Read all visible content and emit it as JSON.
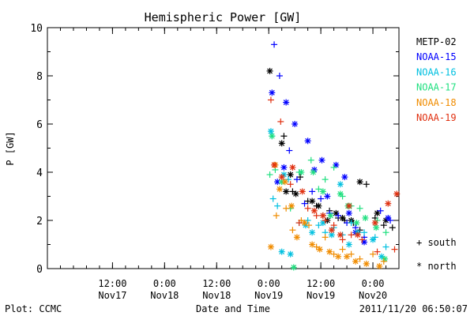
{
  "chart_data": {
    "type": "scatter",
    "title": "Hemispheric Power [GW]",
    "ylabel": "P [GW]",
    "xlabel": "Date and Time",
    "ylim": [
      0,
      10
    ],
    "yticks": [
      0,
      2,
      4,
      6,
      8,
      10
    ],
    "xlim": [
      "2011-11-16T21:00",
      "2011-11-20T06:00"
    ],
    "xticks": [
      {
        "t": "2011-11-17T12:00",
        "line1": "12:00",
        "line2": "Nov17"
      },
      {
        "t": "2011-11-18T00:00",
        "line1": "0:00",
        "line2": "Nov18"
      },
      {
        "t": "2011-11-18T12:00",
        "line1": "12:00",
        "line2": "Nov18"
      },
      {
        "t": "2011-11-19T00:00",
        "line1": "0:00",
        "line2": "Nov19"
      },
      {
        "t": "2011-11-19T12:00",
        "line1": "12:00",
        "line2": "Nov19"
      },
      {
        "t": "2011-11-20T00:00",
        "line1": "0:00",
        "line2": "Nov20"
      }
    ],
    "markers": {
      "south": "+",
      "north": "*"
    },
    "series": [
      {
        "name": "METP-02",
        "color": "#000000",
        "south": [
          [
            "2011-11-19T03:30",
            5.5
          ],
          [
            "2011-11-19T05:30",
            3.2
          ],
          [
            "2011-11-19T07:15",
            3.8
          ],
          [
            "2011-11-19T09:00",
            2.8
          ],
          [
            "2011-11-19T11:00",
            2.6
          ],
          [
            "2011-11-19T12:30",
            2.2
          ],
          [
            "2011-11-19T14:00",
            2.4
          ],
          [
            "2011-11-19T16:00",
            2.1
          ],
          [
            "2011-11-19T17:30",
            2.0
          ],
          [
            "2011-11-19T19:30",
            1.9
          ],
          [
            "2011-11-19T21:00",
            1.6
          ],
          [
            "2011-11-19T22:30",
            3.5
          ],
          [
            "2011-11-20T00:30",
            2.1
          ],
          [
            "2011-11-20T02:30",
            1.8
          ],
          [
            "2011-11-20T04:30",
            1.7
          ]
        ],
        "north": [
          [
            "2011-11-19T00:15",
            8.2
          ],
          [
            "2011-11-19T03:00",
            5.2
          ],
          [
            "2011-11-19T04:00",
            3.2
          ],
          [
            "2011-11-19T05:00",
            3.9
          ],
          [
            "2011-11-19T06:15",
            3.1
          ],
          [
            "2011-11-19T10:00",
            2.8
          ],
          [
            "2011-11-19T11:30",
            2.6
          ],
          [
            "2011-11-19T13:30",
            2.0
          ],
          [
            "2011-11-19T15:30",
            2.3
          ],
          [
            "2011-11-19T17:00",
            2.1
          ],
          [
            "2011-11-19T19:00",
            2.0
          ],
          [
            "2011-11-19T21:00",
            3.6
          ],
          [
            "2011-11-20T01:00",
            2.3
          ],
          [
            "2011-11-20T03:00",
            2.0
          ]
        ]
      },
      {
        "name": "NOAA-15",
        "color": "#0000ff",
        "south": [
          [
            "2011-11-19T01:15",
            9.3
          ],
          [
            "2011-11-19T02:30",
            8.0
          ],
          [
            "2011-11-19T04:45",
            4.9
          ],
          [
            "2011-11-19T06:30",
            3.7
          ],
          [
            "2011-11-19T08:15",
            2.7
          ],
          [
            "2011-11-19T10:00",
            3.2
          ],
          [
            "2011-11-19T12:00",
            2.9
          ],
          [
            "2011-11-19T14:00",
            2.3
          ],
          [
            "2011-11-19T16:00",
            2.2
          ],
          [
            "2011-11-19T18:00",
            1.9
          ],
          [
            "2011-11-19T20:00",
            1.7
          ],
          [
            "2011-11-19T22:00",
            1.3
          ],
          [
            "2011-11-20T01:45",
            2.4
          ],
          [
            "2011-11-20T04:00",
            2.0
          ]
        ],
        "north": [
          [
            "2011-11-19T00:45",
            7.3
          ],
          [
            "2011-11-19T02:00",
            3.6
          ],
          [
            "2011-11-19T03:30",
            4.2
          ],
          [
            "2011-11-19T04:00",
            6.9
          ],
          [
            "2011-11-19T06:00",
            6.0
          ],
          [
            "2011-11-19T09:00",
            5.3
          ],
          [
            "2011-11-19T10:30",
            4.1
          ],
          [
            "2011-11-19T12:15",
            4.5
          ],
          [
            "2011-11-19T13:30",
            3.0
          ],
          [
            "2011-11-19T15:30",
            4.3
          ],
          [
            "2011-11-19T17:30",
            3.8
          ],
          [
            "2011-11-19T18:30",
            2.3
          ],
          [
            "2011-11-19T20:00",
            1.5
          ],
          [
            "2011-11-19T22:00",
            1.1
          ],
          [
            "2011-11-20T03:30",
            2.1
          ]
        ]
      },
      {
        "name": "NOAA-16",
        "color": "#00c0e0",
        "south": [
          [
            "2011-11-19T00:45",
            5.5
          ],
          [
            "2011-11-19T01:00",
            2.9
          ],
          [
            "2011-11-19T02:00",
            2.6
          ],
          [
            "2011-11-19T04:30",
            3.7
          ],
          [
            "2011-11-19T07:00",
            1.9
          ],
          [
            "2011-11-19T09:00",
            2.0
          ],
          [
            "2011-11-19T11:30",
            1.8
          ],
          [
            "2011-11-19T13:00",
            1.5
          ],
          [
            "2011-11-19T15:00",
            1.7
          ],
          [
            "2011-11-19T17:00",
            1.4
          ],
          [
            "2011-11-19T19:00",
            1.9
          ],
          [
            "2011-11-19T22:00",
            1.5
          ],
          [
            "2011-11-20T00:30",
            1.3
          ],
          [
            "2011-11-20T03:00",
            0.9
          ]
        ],
        "north": [
          [
            "2011-11-19T00:30",
            5.7
          ],
          [
            "2011-11-19T03:30",
            3.9
          ],
          [
            "2011-11-19T03:00",
            0.7
          ],
          [
            "2011-11-19T05:00",
            0.6
          ],
          [
            "2011-11-19T08:30",
            1.8
          ],
          [
            "2011-11-19T10:00",
            1.5
          ],
          [
            "2011-11-19T12:30",
            1.9
          ],
          [
            "2011-11-19T14:30",
            1.4
          ],
          [
            "2011-11-19T16:30",
            3.5
          ],
          [
            "2011-11-19T18:30",
            1.0
          ],
          [
            "2011-11-19T20:30",
            1.5
          ],
          [
            "2011-11-20T00:00",
            1.2
          ],
          [
            "2011-11-20T02:00",
            0.5
          ]
        ]
      },
      {
        "name": "NOAA-17",
        "color": "#20e080",
        "south": [
          [
            "2011-11-19T00:15",
            3.9
          ],
          [
            "2011-11-19T01:30",
            4.1
          ],
          [
            "2011-11-19T05:00",
            2.5
          ],
          [
            "2011-11-19T07:00",
            4.0
          ],
          [
            "2011-11-19T09:45",
            4.5
          ],
          [
            "2011-11-19T11:30",
            3.3
          ],
          [
            "2011-11-19T13:00",
            3.7
          ],
          [
            "2011-11-19T15:00",
            4.2
          ],
          [
            "2011-11-19T17:00",
            3.0
          ],
          [
            "2011-11-19T19:00",
            2.6
          ],
          [
            "2011-11-19T21:00",
            2.5
          ],
          [
            "2011-11-20T01:00",
            2.0
          ],
          [
            "2011-11-20T03:00",
            1.5
          ]
        ],
        "north": [
          [
            "2011-11-19T00:45",
            5.5
          ],
          [
            "2011-11-19T03:00",
            3.6
          ],
          [
            "2011-11-19T05:45",
            0.05
          ],
          [
            "2011-11-19T07:30",
            4.0
          ],
          [
            "2011-11-19T10:15",
            4.0
          ],
          [
            "2011-11-19T12:30",
            3.2
          ],
          [
            "2011-11-19T14:15",
            2.2
          ],
          [
            "2011-11-19T16:30",
            3.1
          ],
          [
            "2011-11-19T18:15",
            2.6
          ],
          [
            "2011-11-19T20:15",
            1.9
          ],
          [
            "2011-11-19T22:15",
            2.1
          ],
          [
            "2011-11-20T00:45",
            1.7
          ],
          [
            "2011-11-20T02:45",
            0.4
          ]
        ]
      },
      {
        "name": "NOAA-18",
        "color": "#f08c00",
        "south": [
          [
            "2011-11-19T01:45",
            2.2
          ],
          [
            "2011-11-19T04:00",
            2.5
          ],
          [
            "2011-11-19T05:30",
            1.6
          ],
          [
            "2011-11-19T07:30",
            2.0
          ],
          [
            "2011-11-19T09:15",
            1.8
          ],
          [
            "2011-11-19T11:00",
            0.9
          ],
          [
            "2011-11-19T13:00",
            1.3
          ],
          [
            "2011-11-19T15:00",
            0.6
          ],
          [
            "2011-11-19T17:00",
            0.8
          ],
          [
            "2011-11-19T19:00",
            0.6
          ],
          [
            "2011-11-19T21:00",
            0.4
          ],
          [
            "2011-11-20T00:00",
            0.6
          ],
          [
            "2011-11-20T02:30",
            0.3
          ]
        ],
        "north": [
          [
            "2011-11-19T00:30",
            0.9
          ],
          [
            "2011-11-19T01:30",
            4.3
          ],
          [
            "2011-11-19T02:30",
            3.3
          ],
          [
            "2011-11-19T03:45",
            3.6
          ],
          [
            "2011-11-19T05:15",
            2.6
          ],
          [
            "2011-11-19T06:30",
            1.3
          ],
          [
            "2011-11-19T08:15",
            1.9
          ],
          [
            "2011-11-19T10:00",
            1.0
          ],
          [
            "2011-11-19T11:45",
            0.8
          ],
          [
            "2011-11-19T14:00",
            0.7
          ],
          [
            "2011-11-19T16:00",
            0.5
          ],
          [
            "2011-11-19T18:00",
            0.5
          ],
          [
            "2011-11-19T20:00",
            0.3
          ],
          [
            "2011-11-19T22:30",
            0.2
          ],
          [
            "2011-11-20T01:30",
            0.1
          ]
        ]
      },
      {
        "name": "NOAA-19",
        "color": "#e03010",
        "south": [
          [
            "2011-11-19T00:30",
            7.0
          ],
          [
            "2011-11-19T02:45",
            6.1
          ],
          [
            "2011-11-19T05:00",
            3.5
          ],
          [
            "2011-11-19T07:00",
            1.9
          ],
          [
            "2011-11-19T09:00",
            2.5
          ],
          [
            "2011-11-19T11:00",
            2.2
          ],
          [
            "2011-11-19T13:00",
            2.0
          ],
          [
            "2011-11-19T15:00",
            1.8
          ],
          [
            "2011-11-19T17:00",
            1.2
          ],
          [
            "2011-11-19T19:00",
            1.4
          ],
          [
            "2011-11-19T21:30",
            1.2
          ],
          [
            "2011-11-20T01:00",
            0.7
          ],
          [
            "2011-11-20T05:00",
            0.8
          ]
        ],
        "north": [
          [
            "2011-11-19T01:15",
            4.3
          ],
          [
            "2011-11-19T03:00",
            3.8
          ],
          [
            "2011-11-19T05:30",
            4.2
          ],
          [
            "2011-11-19T07:45",
            3.2
          ],
          [
            "2011-11-19T10:30",
            2.4
          ],
          [
            "2011-11-19T12:30",
            2.2
          ],
          [
            "2011-11-19T14:30",
            1.6
          ],
          [
            "2011-11-19T16:30",
            1.4
          ],
          [
            "2011-11-19T18:30",
            2.6
          ],
          [
            "2011-11-19T20:30",
            1.4
          ],
          [
            "2011-11-20T00:30",
            1.9
          ],
          [
            "2011-11-20T03:30",
            2.7
          ],
          [
            "2011-11-20T05:30",
            3.1
          ]
        ]
      }
    ],
    "legend_position": "right",
    "symbol_legend": [
      {
        "symbol": "+",
        "label": "south"
      },
      {
        "symbol": "*",
        "label": "north"
      }
    ]
  },
  "footer": {
    "left": "Plot: CCMC",
    "right": "2011/11/20 06:50:07"
  }
}
